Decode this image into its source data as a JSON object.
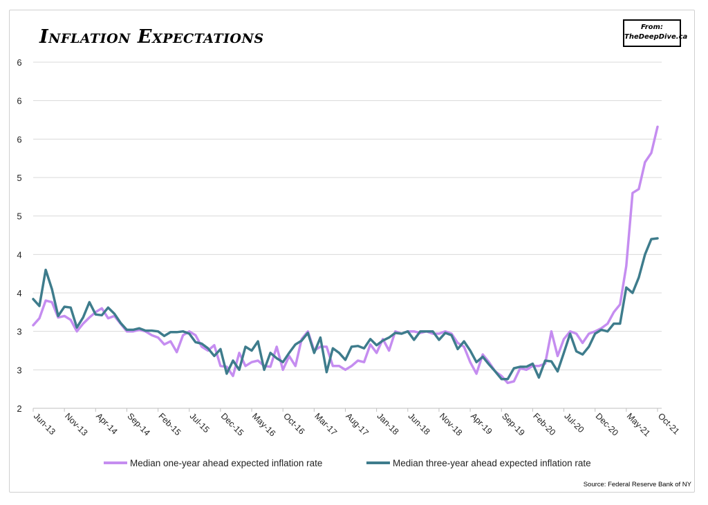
{
  "title": "Inflation Expectations",
  "brand": {
    "line1": "From:",
    "line2": "TheDeepDive.ca"
  },
  "source": "Source: Federal Reserve Bank of NY",
  "chart_data": {
    "type": "line",
    "title": "Inflation Expectations",
    "xlabel": "",
    "ylabel": "",
    "ylim": [
      2,
      6.5
    ],
    "y_tick_values": [
      2,
      2.5,
      3,
      3.5,
      4,
      4.5,
      5,
      5.5,
      6,
      6.5
    ],
    "y_tick_labels": [
      "2",
      "3",
      "3",
      "4",
      "4",
      "5",
      "5",
      "6",
      "6",
      "6"
    ],
    "x_tick_labels": [
      "Jun-13",
      "Nov-13",
      "Apr-14",
      "Sep-14",
      "Feb-15",
      "Jul-15",
      "Dec-15",
      "May-16",
      "Oct-16",
      "Mar-17",
      "Aug-17",
      "Jan-18",
      "Jun-18",
      "Nov-18",
      "Apr-19",
      "Sep-19",
      "Feb-20",
      "Jul-20",
      "Dec-20",
      "May-21",
      "Oct-21"
    ],
    "x_tick_months": [
      0,
      5,
      10,
      15,
      20,
      25,
      30,
      35,
      40,
      45,
      50,
      55,
      60,
      65,
      70,
      75,
      80,
      85,
      90,
      95,
      100
    ],
    "grid": true,
    "legend_position": "bottom",
    "series": [
      {
        "name": "Median one-year ahead expected inflation rate",
        "color": "#c58df0",
        "values": [
          3.08,
          3.17,
          3.4,
          3.38,
          3.18,
          3.2,
          3.15,
          3.0,
          3.1,
          3.18,
          3.25,
          3.3,
          3.17,
          3.2,
          3.1,
          3.0,
          3.0,
          3.02,
          3.0,
          2.95,
          2.92,
          2.83,
          2.87,
          2.73,
          2.95,
          3.0,
          2.95,
          2.8,
          2.75,
          2.82,
          2.55,
          2.54,
          2.42,
          2.72,
          2.55,
          2.6,
          2.62,
          2.55,
          2.54,
          2.8,
          2.5,
          2.68,
          2.55,
          2.9,
          3.0,
          2.75,
          2.8,
          2.8,
          2.55,
          2.55,
          2.5,
          2.55,
          2.62,
          2.6,
          2.83,
          2.72,
          2.9,
          2.75,
          3.0,
          2.97,
          3.0,
          3.0,
          2.98,
          3.0,
          2.97,
          2.97,
          3.0,
          2.97,
          2.85,
          2.8,
          2.6,
          2.45,
          2.7,
          2.6,
          2.48,
          2.42,
          2.33,
          2.35,
          2.52,
          2.5,
          2.55,
          2.55,
          2.58,
          3.0,
          2.68,
          2.9,
          3.0,
          2.97,
          2.85,
          2.97,
          3.0,
          3.04,
          3.1,
          3.25,
          3.35,
          3.85,
          4.8,
          4.85,
          5.2,
          5.32,
          5.66
        ]
      },
      {
        "name": "Median three-year ahead expected inflation rate",
        "color": "#3e7c8c",
        "values": [
          3.42,
          3.33,
          3.8,
          3.55,
          3.2,
          3.32,
          3.31,
          3.05,
          3.18,
          3.38,
          3.22,
          3.21,
          3.31,
          3.23,
          3.11,
          3.02,
          3.02,
          3.04,
          3.01,
          3.01,
          3.0,
          2.94,
          2.99,
          2.99,
          3.0,
          2.97,
          2.86,
          2.84,
          2.78,
          2.68,
          2.77,
          2.45,
          2.62,
          2.5,
          2.8,
          2.75,
          2.87,
          2.5,
          2.72,
          2.65,
          2.6,
          2.72,
          2.83,
          2.88,
          2.98,
          2.72,
          2.92,
          2.47,
          2.78,
          2.72,
          2.63,
          2.8,
          2.81,
          2.78,
          2.9,
          2.82,
          2.88,
          2.92,
          2.98,
          2.97,
          3.0,
          2.89,
          3.0,
          3.0,
          3.0,
          2.89,
          2.98,
          2.95,
          2.77,
          2.87,
          2.75,
          2.6,
          2.67,
          2.57,
          2.48,
          2.38,
          2.38,
          2.52,
          2.54,
          2.54,
          2.58,
          2.4,
          2.62,
          2.61,
          2.48,
          2.72,
          2.97,
          2.74,
          2.7,
          2.8,
          2.97,
          3.02,
          3.0,
          3.1,
          3.1,
          3.57,
          3.5,
          3.7,
          4.0,
          4.2,
          4.21
        ]
      }
    ]
  }
}
